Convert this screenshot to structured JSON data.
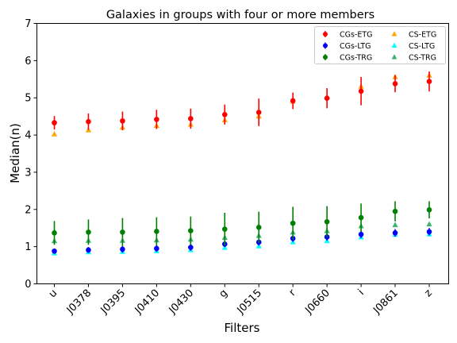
{
  "chart_data": {
    "type": "scatter",
    "title": "Galaxies in groups with four or more members",
    "xlabel": "Filters",
    "ylabel": "Median(n)",
    "categories": [
      "u",
      "J0378",
      "J0395",
      "J0410",
      "J0430",
      "g",
      "J0515",
      "r",
      "J0660",
      "i",
      "J0861",
      "z"
    ],
    "ylim": [
      0,
      7
    ],
    "yticks": [
      0,
      1,
      2,
      3,
      4,
      5,
      6,
      7
    ],
    "grid": false,
    "legend_position": "top-right",
    "series": [
      {
        "name": "CGs-ETG",
        "color": "#ff0000",
        "marker": "circle",
        "errorbars": true,
        "values": [
          4.33,
          4.36,
          4.38,
          4.42,
          4.44,
          4.55,
          4.61,
          4.92,
          4.99,
          5.18,
          5.38,
          5.44
        ],
        "err": [
          0.18,
          0.22,
          0.25,
          0.26,
          0.27,
          0.27,
          0.37,
          0.22,
          0.27,
          0.38,
          0.23,
          0.27
        ]
      },
      {
        "name": "CGs-LTG",
        "color": "#0000ff",
        "marker": "circle",
        "errorbars": true,
        "values": [
          0.88,
          0.91,
          0.93,
          0.95,
          0.98,
          1.07,
          1.12,
          1.22,
          1.26,
          1.33,
          1.37,
          1.4
        ],
        "err": [
          0.07,
          0.08,
          0.09,
          0.09,
          0.09,
          0.08,
          0.09,
          0.09,
          0.1,
          0.1,
          0.1,
          0.1
        ]
      },
      {
        "name": "CGs-TRG",
        "color": "#008000",
        "marker": "circle",
        "errorbars": true,
        "values": [
          1.37,
          1.39,
          1.39,
          1.41,
          1.43,
          1.47,
          1.52,
          1.63,
          1.67,
          1.78,
          1.95,
          1.99
        ],
        "err": [
          0.32,
          0.34,
          0.38,
          0.38,
          0.38,
          0.44,
          0.42,
          0.44,
          0.42,
          0.38,
          0.27,
          0.23
        ]
      },
      {
        "name": "CS-ETG",
        "color": "#ffa500",
        "marker": "triangle",
        "values": [
          4.02,
          4.13,
          4.2,
          4.25,
          4.28,
          4.4,
          4.5,
          4.9,
          5.02,
          5.3,
          5.56,
          5.6
        ]
      },
      {
        "name": "CS-LTG",
        "color": "#00ffff",
        "marker": "triangle",
        "values": [
          0.82,
          0.85,
          0.86,
          0.88,
          0.91,
          0.97,
          1.01,
          1.12,
          1.15,
          1.25,
          1.32,
          1.33
        ]
      },
      {
        "name": "CS-TRG",
        "color": "#3cb371",
        "marker": "triangle",
        "values": [
          1.15,
          1.16,
          1.16,
          1.17,
          1.19,
          1.24,
          1.29,
          1.38,
          1.42,
          1.55,
          1.58,
          1.6
        ]
      }
    ]
  }
}
